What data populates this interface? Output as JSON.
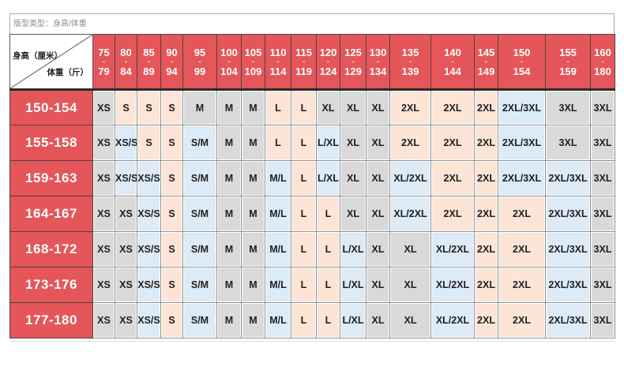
{
  "title": "版型类型：身高/体重",
  "corner": {
    "row_axis_label": "身高（厘米）",
    "col_axis_label": "体重（斤）"
  },
  "weight_columns": [
    {
      "from": "75",
      "to": "79"
    },
    {
      "from": "80",
      "to": "84"
    },
    {
      "from": "85",
      "to": "89"
    },
    {
      "from": "90",
      "to": "94"
    },
    {
      "from": "95",
      "to": "99"
    },
    {
      "from": "100",
      "to": "104"
    },
    {
      "from": "105",
      "to": "109"
    },
    {
      "from": "110",
      "to": "114"
    },
    {
      "from": "115",
      "to": "119"
    },
    {
      "from": "120",
      "to": "124"
    },
    {
      "from": "125",
      "to": "129"
    },
    {
      "from": "130",
      "to": "134"
    },
    {
      "from": "135",
      "to": "139"
    },
    {
      "from": "140",
      "to": "144"
    },
    {
      "from": "145",
      "to": "149"
    },
    {
      "from": "150",
      "to": "154"
    },
    {
      "from": "155",
      "to": "159"
    },
    {
      "from": "160",
      "to": "180"
    }
  ],
  "rows": [
    {
      "height": "150-154",
      "sizes": [
        "XS",
        "S",
        "S",
        "S",
        "M",
        "M",
        "M",
        "L",
        "L",
        "XL",
        "XL",
        "XL",
        "2XL",
        "2XL",
        "2XL",
        "2XL/3XL",
        "3XL",
        "3XL"
      ]
    },
    {
      "height": "155-158",
      "sizes": [
        "XS",
        "XS/S",
        "S",
        "S",
        "S/M",
        "M",
        "M",
        "L",
        "L",
        "L/XL",
        "XL",
        "XL",
        "2XL",
        "2XL",
        "2XL",
        "2XL/3XL",
        "3XL",
        "3XL"
      ]
    },
    {
      "height": "159-163",
      "sizes": [
        "XS",
        "XS/S",
        "XS/S",
        "S",
        "S/M",
        "M",
        "M",
        "M/L",
        "L",
        "L/XL",
        "XL",
        "XL",
        "XL/2XL",
        "2XL",
        "2XL",
        "2XL/3XL",
        "2XL/3XL",
        "3XL"
      ]
    },
    {
      "height": "164-167",
      "sizes": [
        "XS",
        "XS",
        "XS/S",
        "S",
        "S/M",
        "M",
        "M",
        "M/L",
        "L",
        "L",
        "XL",
        "XL",
        "XL/2XL",
        "2XL",
        "2XL",
        "2XL",
        "2XL/3XL",
        "3XL"
      ]
    },
    {
      "height": "168-172",
      "sizes": [
        "XS",
        "XS",
        "XS/S",
        "S",
        "S/M",
        "M",
        "M",
        "M/L",
        "L",
        "L",
        "L/XL",
        "XL",
        "XL",
        "XL/2XL",
        "2XL",
        "2XL",
        "2XL/3XL",
        "3XL"
      ]
    },
    {
      "height": "173-176",
      "sizes": [
        "XS",
        "XS",
        "XS/S",
        "S",
        "S/M",
        "M",
        "M",
        "M/L",
        "L",
        "L",
        "L/XL",
        "XL",
        "XL",
        "XL/2XL",
        "2XL",
        "2XL",
        "2XL/3XL",
        "3XL"
      ]
    },
    {
      "height": "177-180",
      "sizes": [
        "XS",
        "XS",
        "XS/S",
        "S",
        "S/M",
        "M",
        "M",
        "M/L",
        "L",
        "L",
        "L/XL",
        "XL",
        "XL",
        "XL/2XL",
        "2XL",
        "2XL",
        "2XL/3XL",
        "3XL"
      ]
    }
  ],
  "colors": {
    "header_bg": "#e4565a",
    "header_text": "#ffffff",
    "combo_bg": "#ddebf7",
    "size_colors": {
      "XS": "#d9d9d9",
      "S": "#fce4d6",
      "M": "#d9d9d9",
      "L": "#fce4d6",
      "XL": "#d9d9d9",
      "2XL": "#fce4d6",
      "3XL": "#d9d9d9"
    }
  }
}
